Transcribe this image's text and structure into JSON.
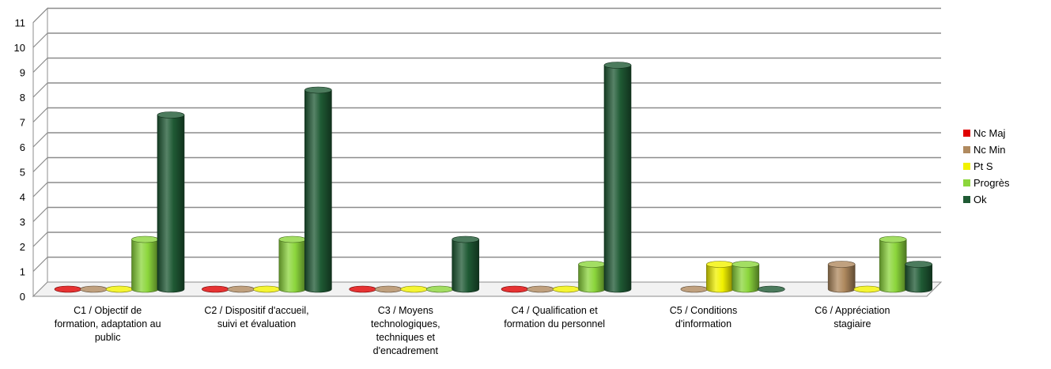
{
  "chart_data": {
    "type": "bar",
    "title": "",
    "xlabel": "",
    "ylabel": "",
    "ylim": [
      0,
      11
    ],
    "yticks": [
      0,
      1,
      2,
      3,
      4,
      5,
      6,
      7,
      8,
      9,
      10,
      11
    ],
    "grid": true,
    "legend_position": "right",
    "categories": [
      [
        "C1 / Objectif de",
        "formation, adaptation au",
        "public"
      ],
      [
        "C2 / Dispositif d'accueil,",
        "suivi et évaluation"
      ],
      [
        "C3 / Moyens",
        "technologiques,",
        "techniques et",
        "d'encadrement"
      ],
      [
        "C4 / Qualification et",
        "formation du personnel"
      ],
      [
        "C5 / Conditions",
        "d'information"
      ],
      [
        "C6 / Appréciation",
        "stagiaire"
      ]
    ],
    "series": [
      {
        "name": "Nc Maj",
        "color": "#e00000",
        "values": [
          0,
          0,
          0,
          0,
          null,
          null
        ]
      },
      {
        "name": "Nc Min",
        "color": "#b08a5f",
        "values": [
          0,
          0,
          0,
          0,
          0,
          1
        ]
      },
      {
        "name": "Pt S",
        "color": "#f2f200",
        "values": [
          0,
          0,
          0,
          0,
          1,
          0
        ]
      },
      {
        "name": "Progrès",
        "color": "#8cd63c",
        "values": [
          2,
          2,
          0,
          1,
          1,
          2
        ]
      },
      {
        "name": "Ok",
        "color": "#1f5a34",
        "values": [
          7,
          8,
          2,
          9,
          0,
          1
        ]
      }
    ]
  }
}
